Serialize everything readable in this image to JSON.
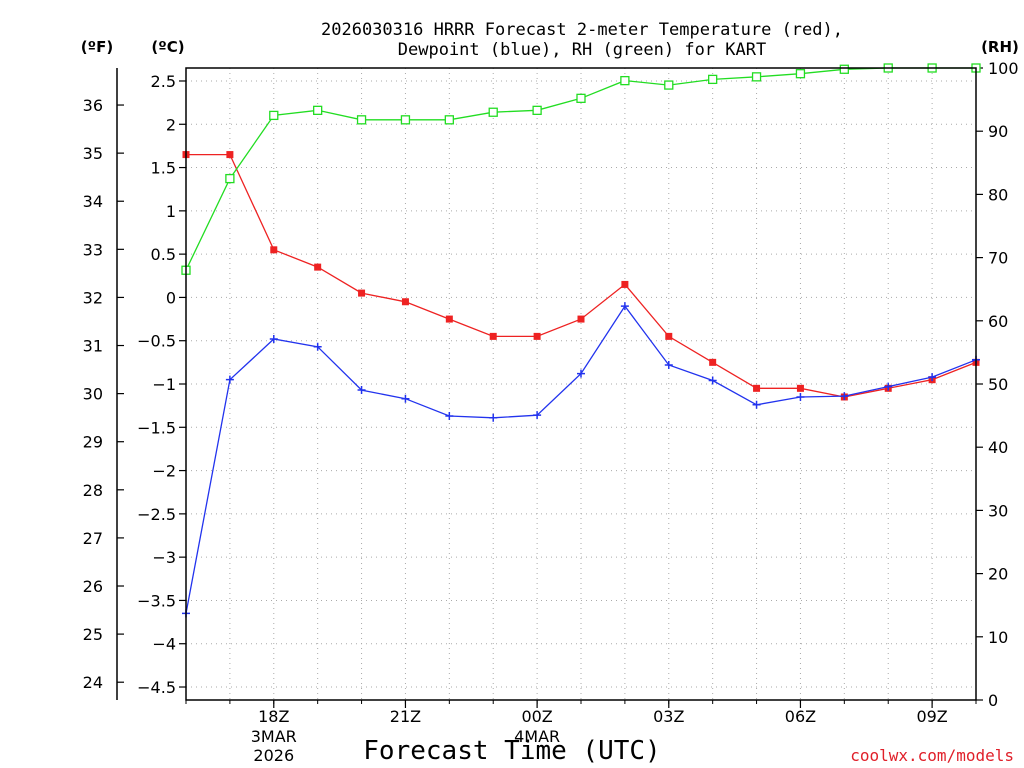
{
  "chart_data": {
    "type": "line",
    "title_line1": "2026030316 HRRR Forecast 2-meter Temperature (red),",
    "title_line2": "Dewpoint (blue), RH (green) for KART",
    "xlabel": "Forecast Time (UTC)",
    "credit": "coolwx.com/models",
    "units": {
      "fahrenheit": "(ºF)",
      "celsius": "(ºC)",
      "rh": "(RH)"
    },
    "y_celsius": {
      "lim": [
        -4.65,
        2.65
      ],
      "ticks": [
        2.5,
        2,
        1.5,
        1,
        0.5,
        0,
        -0.5,
        -1,
        -1.5,
        -2,
        -2.5,
        -3,
        -3.5,
        -4,
        -4.5
      ],
      "labels": [
        "2.5",
        "2",
        "1.5",
        "1",
        "0.5",
        "0",
        "−0.5",
        "−1",
        "−1.5",
        "−2",
        "−2.5",
        "−3",
        "−3.5",
        "−4",
        "−4.5"
      ]
    },
    "y_fahrenheit": {
      "ticks": [
        36,
        35,
        34,
        33,
        32,
        31,
        30,
        29,
        28,
        27,
        26,
        25,
        24
      ],
      "labels": [
        "36",
        "35",
        "34",
        "33",
        "32",
        "31",
        "30",
        "29",
        "28",
        "27",
        "26",
        "25",
        "24"
      ]
    },
    "y_rh": {
      "lim": [
        0,
        100
      ],
      "ticks": [
        100,
        90,
        80,
        70,
        60,
        50,
        40,
        30,
        20,
        10,
        0
      ],
      "labels": [
        "100",
        "90",
        "80",
        "70",
        "60",
        "50",
        "40",
        "30",
        "20",
        "10",
        "0"
      ]
    },
    "x_hours": [
      0,
      1,
      2,
      3,
      4,
      5,
      6,
      7,
      8,
      9,
      10,
      11,
      12,
      13,
      14,
      15,
      16,
      17,
      18
    ],
    "x_lim": [
      0,
      18
    ],
    "x_ticks": [
      {
        "hour": 2,
        "label": "18Z",
        "sub1": "3MAR",
        "sub2": "2026"
      },
      {
        "hour": 5,
        "label": "21Z",
        "sub1": "",
        "sub2": ""
      },
      {
        "hour": 8,
        "label": "00Z",
        "sub1": "4MAR",
        "sub2": ""
      },
      {
        "hour": 11,
        "label": "03Z",
        "sub1": "",
        "sub2": ""
      },
      {
        "hour": 14,
        "label": "06Z",
        "sub1": "",
        "sub2": ""
      },
      {
        "hour": 17,
        "label": "09Z",
        "sub1": "",
        "sub2": ""
      }
    ],
    "series": [
      {
        "name": "Temperature",
        "axis": "celsius",
        "color": "#ee2222",
        "marker": "filled-square",
        "values": [
          1.65,
          1.65,
          0.55,
          0.35,
          0.05,
          -0.05,
          -0.25,
          -0.45,
          -0.45,
          -0.25,
          0.15,
          -0.45,
          -0.75,
          -1.05,
          -1.05,
          -1.15,
          -1.05,
          -0.95,
          -0.75
        ]
      },
      {
        "name": "Dewpoint",
        "axis": "celsius",
        "color": "#2233ee",
        "marker": "plus",
        "values": [
          -3.65,
          -0.95,
          -0.48,
          -0.57,
          -1.07,
          -1.17,
          -1.37,
          -1.39,
          -1.36,
          -0.88,
          -0.1,
          -0.78,
          -0.96,
          -1.24,
          -1.15,
          -1.14,
          -1.03,
          -0.92,
          -0.72
        ]
      },
      {
        "name": "RH",
        "axis": "rh",
        "color": "#22dd22",
        "marker": "open-square",
        "values": [
          68,
          82.5,
          92.5,
          93.3,
          91.8,
          91.8,
          91.8,
          93,
          93.3,
          95.2,
          98,
          97.3,
          98.2,
          98.6,
          99.1,
          99.8,
          100,
          100,
          100
        ]
      }
    ]
  }
}
